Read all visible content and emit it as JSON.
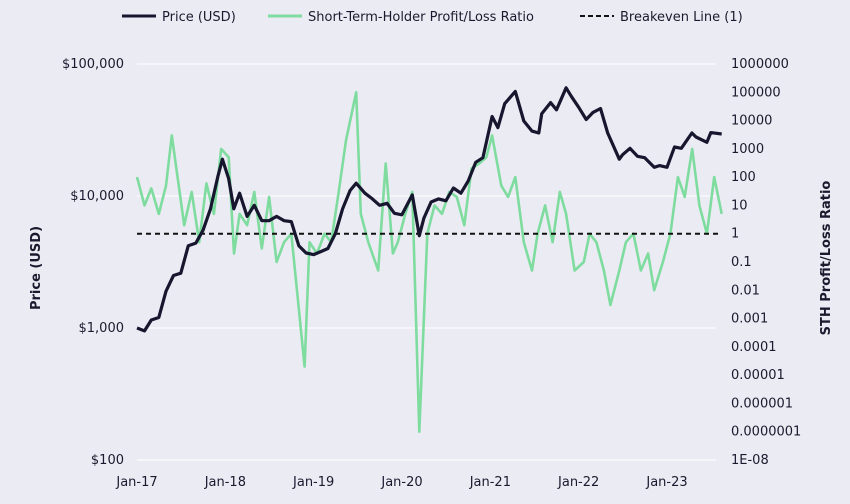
{
  "chart_data": {
    "type": "line",
    "x_axis": {
      "ticks": [
        "Jan-17",
        "Jan-18",
        "Jan-19",
        "Jan-20",
        "Jan-21",
        "Jan-22",
        "Jan-23"
      ],
      "range": [
        "2017-01-01",
        "2023-08-15"
      ]
    },
    "y_left": {
      "label": "Price (USD)",
      "scale": "log",
      "range": [
        100,
        100000
      ],
      "tick_values": [
        100,
        1000,
        10000,
        100000
      ],
      "tick_labels": [
        "$100",
        "$1,000",
        "$10,000",
        "$100,000"
      ]
    },
    "y_right": {
      "label": "STH Profit/Loss Ratio",
      "scale": "log",
      "range": [
        1e-08,
        1000000
      ],
      "tick_values": [
        1e-08,
        1e-07,
        1e-06,
        1e-05,
        0.0001,
        0.001,
        0.01,
        0.1,
        1,
        10,
        100,
        1000,
        10000,
        100000,
        1000000
      ],
      "tick_labels": [
        "1E-08",
        "0.0000001",
        "0.000001",
        "0.00001",
        "0.0001",
        "0.001",
        "0.01",
        "0.1",
        "1",
        "10",
        "100",
        "1000",
        "10000",
        "100000",
        "1000000"
      ]
    },
    "grid": "horizontal",
    "legend_position": "top",
    "series": [
      {
        "name": "Price (USD)",
        "axis": "left",
        "color": "#16162e",
        "style": "solid",
        "x": [
          "2017-01-01",
          "2017-02-01",
          "2017-03-01",
          "2017-04-01",
          "2017-05-01",
          "2017-06-01",
          "2017-07-01",
          "2017-08-01",
          "2017-09-01",
          "2017-10-01",
          "2017-11-01",
          "2017-12-01",
          "2017-12-20",
          "2018-01-15",
          "2018-02-05",
          "2018-03-01",
          "2018-04-01",
          "2018-05-01",
          "2018-06-01",
          "2018-07-01",
          "2018-08-01",
          "2018-09-01",
          "2018-10-01",
          "2018-11-01",
          "2018-12-01",
          "2019-01-01",
          "2019-02-01",
          "2019-03-01",
          "2019-04-01",
          "2019-05-01",
          "2019-06-01",
          "2019-06-26",
          "2019-08-01",
          "2019-09-01",
          "2019-10-01",
          "2019-11-01",
          "2019-12-01",
          "2020-01-01",
          "2020-02-13",
          "2020-03-13",
          "2020-04-01",
          "2020-05-01",
          "2020-06-01",
          "2020-07-01",
          "2020-08-01",
          "2020-09-01",
          "2020-10-01",
          "2020-11-01",
          "2020-12-01",
          "2021-01-08",
          "2021-02-01",
          "2021-03-01",
          "2021-04-14",
          "2021-05-19",
          "2021-06-22",
          "2021-07-20",
          "2021-08-01",
          "2021-09-07",
          "2021-10-01",
          "2021-11-10",
          "2021-12-01",
          "2022-01-01",
          "2022-02-01",
          "2022-03-01",
          "2022-04-01",
          "2022-05-01",
          "2022-06-18",
          "2022-07-01",
          "2022-08-01",
          "2022-09-01",
          "2022-10-01",
          "2022-11-09",
          "2022-12-01",
          "2023-01-01",
          "2023-02-01",
          "2023-03-01",
          "2023-04-14",
          "2023-05-01",
          "2023-06-15",
          "2023-07-01",
          "2023-08-15"
        ],
        "values": [
          1000,
          950,
          1150,
          1200,
          1900,
          2500,
          2600,
          4200,
          4400,
          5500,
          8000,
          14000,
          19000,
          13500,
          8000,
          10500,
          7000,
          8500,
          6500,
          6500,
          7000,
          6500,
          6400,
          4200,
          3700,
          3600,
          3800,
          4000,
          5200,
          8000,
          11000,
          12500,
          10500,
          9500,
          8500,
          8800,
          7400,
          7200,
          10200,
          5000,
          6800,
          9000,
          9500,
          9200,
          11500,
          10500,
          13000,
          18000,
          19500,
          40000,
          33000,
          50000,
          62000,
          37000,
          31000,
          30000,
          42000,
          51000,
          45000,
          66000,
          57000,
          47000,
          38000,
          43000,
          46000,
          30000,
          19000,
          20500,
          23000,
          20000,
          19500,
          16500,
          17000,
          16500,
          23500,
          23000,
          30000,
          28000,
          25500,
          30200,
          29500
        ]
      },
      {
        "name": "Short-Term-Holder Profit/Loss Ratio",
        "axis": "right",
        "color": "#7fdc9f",
        "style": "solid",
        "x": [
          "2017-01-01",
          "2017-02-01",
          "2017-03-01",
          "2017-04-01",
          "2017-05-01",
          "2017-05-25",
          "2017-07-15",
          "2017-08-15",
          "2017-09-15",
          "2017-10-15",
          "2017-11-15",
          "2017-12-15",
          "2018-01-15",
          "2018-02-06",
          "2018-03-01",
          "2018-04-01",
          "2018-05-01",
          "2018-06-01",
          "2018-07-01",
          "2018-08-01",
          "2018-09-01",
          "2018-10-01",
          "2018-11-25",
          "2018-12-15",
          "2019-01-15",
          "2019-02-15",
          "2019-03-15",
          "2019-04-15",
          "2019-05-15",
          "2019-06-26",
          "2019-07-15",
          "2019-08-15",
          "2019-09-25",
          "2019-10-26",
          "2019-11-25",
          "2019-12-15",
          "2020-01-15",
          "2020-02-13",
          "2020-03-13",
          "2020-04-15",
          "2020-05-15",
          "2020-06-15",
          "2020-07-15",
          "2020-08-15",
          "2020-09-15",
          "2020-10-15",
          "2020-11-15",
          "2020-12-15",
          "2021-01-08",
          "2021-02-15",
          "2021-03-15",
          "2021-04-14",
          "2021-05-19",
          "2021-06-22",
          "2021-07-15",
          "2021-08-15",
          "2021-09-15",
          "2021-10-15",
          "2021-11-10",
          "2021-12-15",
          "2022-01-22",
          "2022-02-15",
          "2022-03-15",
          "2022-04-15",
          "2022-05-12",
          "2022-06-18",
          "2022-07-15",
          "2022-08-15",
          "2022-09-15",
          "2022-10-15",
          "2022-11-09",
          "2022-12-15",
          "2023-01-15",
          "2023-02-15",
          "2023-03-15",
          "2023-04-15",
          "2023-05-15",
          "2023-06-15",
          "2023-07-15",
          "2023-08-15"
        ],
        "values": [
          100,
          10,
          40,
          5,
          50,
          3000,
          2,
          30,
          0.5,
          60,
          5,
          1000,
          500,
          0.2,
          5,
          2,
          30,
          0.3,
          20,
          0.1,
          0.5,
          1,
          2e-05,
          0.5,
          0.2,
          1,
          0.5,
          30,
          2000,
          100000,
          5,
          0.5,
          0.05,
          300,
          0.2,
          0.5,
          5,
          30,
          1e-07,
          1,
          10,
          5,
          30,
          20,
          2,
          200,
          300,
          500,
          3000,
          50,
          20,
          100,
          0.5,
          0.05,
          1,
          10,
          0.5,
          30,
          5,
          0.05,
          0.1,
          1,
          0.5,
          0.05,
          0.003,
          0.05,
          0.5,
          1,
          0.05,
          0.2,
          0.01,
          0.1,
          1,
          100,
          20,
          1000,
          10,
          1,
          100,
          5
        ]
      },
      {
        "name": "Breakeven Line (1)",
        "axis": "right",
        "color": "#111111",
        "style": "dashed",
        "x": [
          "2017-01-01",
          "2023-08-15"
        ],
        "values": [
          1,
          1
        ]
      }
    ]
  }
}
